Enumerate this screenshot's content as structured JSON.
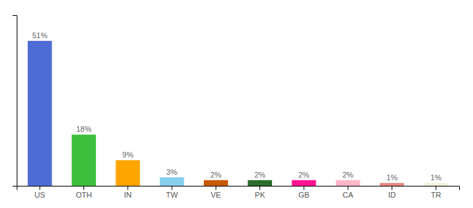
{
  "chart_data": {
    "type": "bar",
    "categories": [
      "US",
      "OTH",
      "IN",
      "TW",
      "VE",
      "PK",
      "GB",
      "CA",
      "ID",
      "TR"
    ],
    "values": [
      51,
      18,
      9,
      3,
      2,
      2,
      2,
      2,
      1,
      1
    ],
    "value_labels": [
      "51%",
      "18%",
      "9%",
      "3%",
      "2%",
      "2%",
      "2%",
      "2%",
      "1%",
      "1%"
    ],
    "colors": [
      "#4F6CD4",
      "#3DBF3D",
      "#FFA500",
      "#87CEEB",
      "#C85A00",
      "#2B6B2B",
      "#FF1493",
      "#FFB6C8",
      "#E88880",
      "#F5F0DC"
    ],
    "ylim": [
      0,
      60
    ],
    "data_labels": true,
    "tick_labels": "x",
    "grid": false
  }
}
